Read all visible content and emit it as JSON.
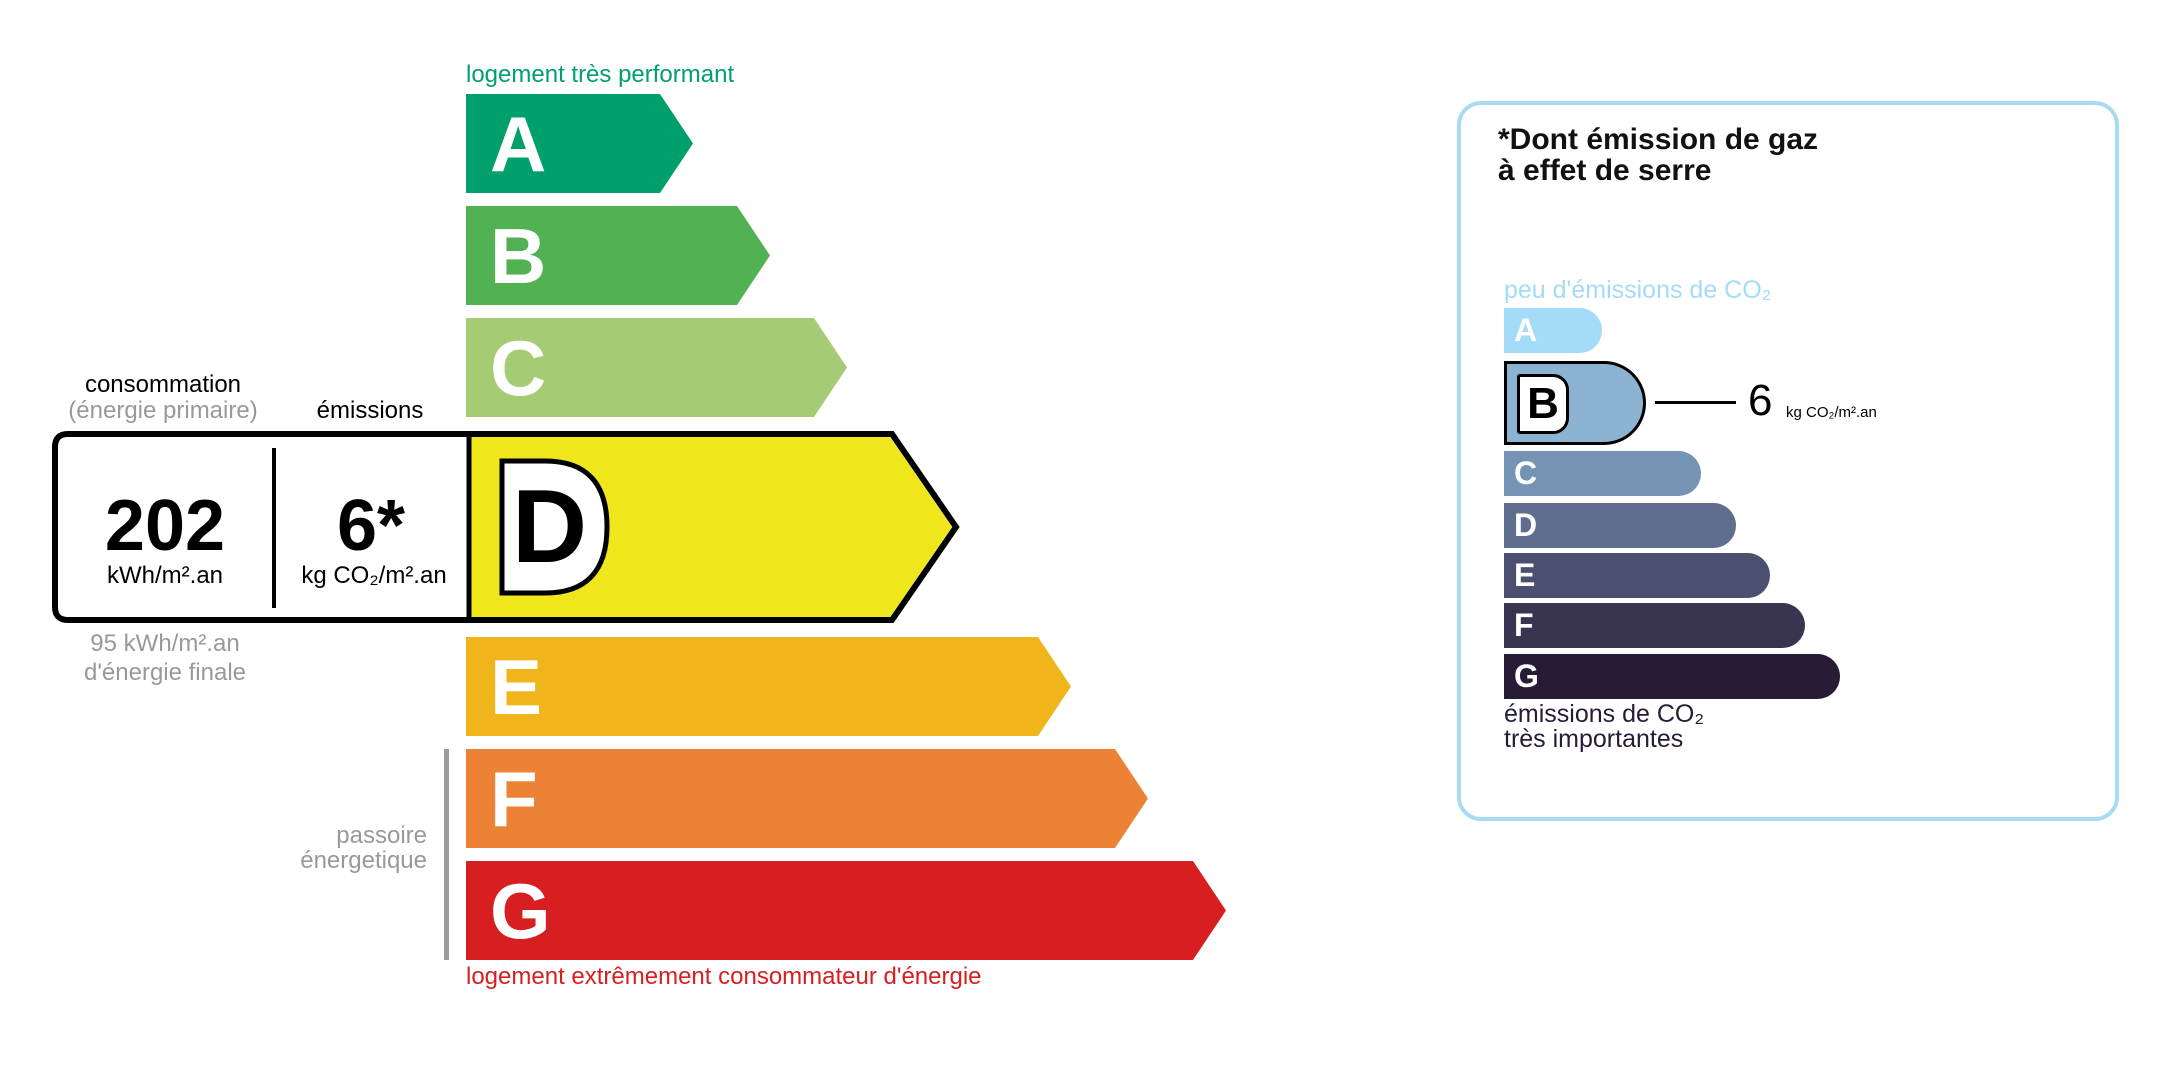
{
  "energy_scale": {
    "top_label": "logement très performant",
    "bottom_label": "logement extrêmement consommateur d'énergie",
    "passoire_label_line1": "passoire",
    "passoire_label_line2": "énergetique",
    "classes": [
      {
        "letter": "A",
        "color": "#00a06d"
      },
      {
        "letter": "B",
        "color": "#52b153"
      },
      {
        "letter": "C",
        "color": "#a5cc74"
      },
      {
        "letter": "D",
        "color": "#f0e61c"
      },
      {
        "letter": "E",
        "color": "#efb51a"
      },
      {
        "letter": "F",
        "color": "#eb8235"
      },
      {
        "letter": "G",
        "color": "#d71e21"
      }
    ],
    "current_class": "D"
  },
  "result": {
    "consumption_label": "consommation",
    "consumption_sublabel": "(énergie primaire)",
    "emissions_label": "émissions",
    "consumption_value": "202",
    "consumption_unit": "kWh/m².an",
    "emissions_value": "6*",
    "emissions_unit": "kg CO₂/m².an",
    "final_energy_value": "95 kWh/m².an",
    "final_energy_label": "d'énergie finale"
  },
  "ges_panel": {
    "title_line1": "*Dont émission de gaz",
    "title_line2": "à effet de serre",
    "top_label": "peu d'émissions de CO₂",
    "bottom_label_line1": "émissions de CO₂",
    "bottom_label_line2": "très importantes",
    "classes": [
      {
        "letter": "A",
        "color": "#a4dbf8"
      },
      {
        "letter": "B",
        "color": "#8cb4d2"
      },
      {
        "letter": "C",
        "color": "#7594b3"
      },
      {
        "letter": "D",
        "color": "#5f6d8e"
      },
      {
        "letter": "E",
        "color": "#4c5070"
      },
      {
        "letter": "F",
        "color": "#393551"
      },
      {
        "letter": "G",
        "color": "#281b35"
      }
    ],
    "current_class": "B",
    "value": "6",
    "unit": "kg CO₂/m².an",
    "border_color": "#a8dcf5"
  }
}
